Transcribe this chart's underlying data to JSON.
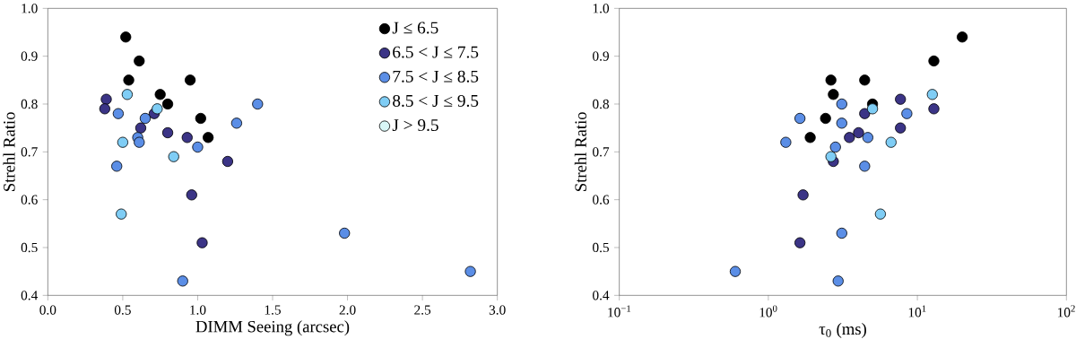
{
  "chart_data": [
    {
      "type": "scatter",
      "xlabel": "DIMM Seeing (arcsec)",
      "ylabel": "Strehl Ratio",
      "xlim": [
        0,
        3
      ],
      "ylim": [
        0.4,
        1.0
      ],
      "xticks": [
        {
          "value": 0,
          "label": "0.0"
        },
        0.5,
        {
          "value": 1,
          "label": "1.0"
        },
        1.5,
        {
          "value": 2,
          "label": "2.0"
        },
        2.5,
        {
          "value": 3,
          "label": "3.0"
        }
      ],
      "yticks": [
        0.4,
        0.5,
        0.6,
        0.7,
        0.8,
        0.9,
        {
          "value": 1,
          "label": "1.0"
        }
      ],
      "legend": "top right",
      "series": [
        {
          "name": "J ≤ 6.5",
          "color": "#000000",
          "x": [
            0.52,
            0.61,
            0.54,
            0.95,
            0.75,
            0.8,
            1.02,
            1.07
          ],
          "values": [
            0.94,
            0.89,
            0.85,
            0.85,
            0.82,
            0.8,
            0.77,
            0.73
          ]
        },
        {
          "name": "6.5 < J ≤ 7.5",
          "color": "#3b3486",
          "x": [
            0.39,
            0.38,
            0.71,
            0.62,
            0.8,
            0.93,
            1.2,
            0.96,
            1.03
          ],
          "values": [
            0.81,
            0.79,
            0.78,
            0.75,
            0.74,
            0.73,
            0.68,
            0.61,
            0.51
          ]
        },
        {
          "name": "7.5 < J ≤ 8.5",
          "color": "#5b8ee6",
          "x": [
            0.47,
            0.65,
            0.6,
            0.61,
            1.0,
            0.46,
            0.9,
            1.26,
            1.4,
            1.98,
            2.82
          ],
          "values": [
            0.78,
            0.77,
            0.73,
            0.72,
            0.71,
            0.67,
            0.43,
            0.76,
            0.8,
            0.53,
            0.45
          ]
        },
        {
          "name": "8.5 < J ≤ 9.5",
          "color": "#7fcdf5",
          "x": [
            0.53,
            0.73,
            0.5,
            0.84,
            0.49
          ],
          "values": [
            0.82,
            0.79,
            0.72,
            0.69,
            0.57
          ]
        },
        {
          "name": "J > 9.5",
          "color": "#d9f7f7"
        }
      ]
    },
    {
      "type": "scatter",
      "xlabel": "τ$_{0}$ (ms)",
      "ylabel": "Strehl Ratio",
      "log": "x",
      "xlim": [
        0.1,
        100
      ],
      "ylim": [
        0.4,
        1.0
      ],
      "xticks": [
        {
          "value": 0.1,
          "label": "10$^{−1}$"
        },
        {
          "value": 1,
          "label": "10$^{0}$"
        },
        {
          "value": 10,
          "label": "10$^{1}$"
        },
        {
          "value": 100,
          "label": "10$^{2}$"
        }
      ],
      "yticks": [
        0.4,
        0.5,
        0.6,
        0.7,
        0.8,
        0.9,
        {
          "value": 1,
          "label": "1.0"
        }
      ],
      "series": [
        {
          "color": "#000000",
          "x": [
            2.63,
            4.43,
            2.73,
            5.0,
            2.42,
            1.91,
            12.9,
            20
          ],
          "values": [
            0.85,
            0.85,
            0.82,
            0.8,
            0.77,
            0.73,
            0.89,
            0.94
          ]
        },
        {
          "color": "#3b3486",
          "x": [
            7.7,
            4.43,
            12.9,
            7.7,
            3.5,
            4.03,
            2.73,
            1.71,
            1.63
          ],
          "values": [
            0.81,
            0.78,
            0.79,
            0.75,
            0.73,
            0.74,
            0.68,
            0.61,
            0.51
          ]
        },
        {
          "color": "#5b8ee6",
          "x": [
            3.11,
            1.63,
            3.11,
            1.31,
            2.82,
            4.65,
            4.43,
            8.5,
            3.11,
            2.94,
            0.6
          ],
          "values": [
            0.8,
            0.77,
            0.76,
            0.72,
            0.71,
            0.73,
            0.67,
            0.78,
            0.53,
            0.43,
            0.45
          ]
        },
        {
          "color": "#7fcdf5",
          "x": [
            12.6,
            5.0,
            6.66,
            2.63,
            5.65
          ],
          "values": [
            0.82,
            0.79,
            0.72,
            0.69,
            0.57
          ]
        }
      ]
    }
  ]
}
